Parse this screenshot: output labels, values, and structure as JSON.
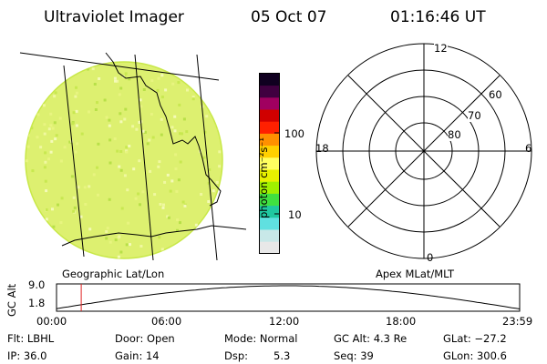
{
  "header": {
    "title": "Ultraviolet Imager",
    "date": "05 Oct 07",
    "time": "01:16:46 UT"
  },
  "colorbar": {
    "label": "photon cm⁻²s⁻¹",
    "ticks": [
      "100",
      "10"
    ],
    "scale": "log",
    "colors": [
      "#e8e8e8",
      "#c8e8e8",
      "#60e0e0",
      "#20c8a0",
      "#40e040",
      "#a0f000",
      "#e8f000",
      "#ffff60",
      "#ffd000",
      "#ff9000",
      "#ff2000",
      "#d00000",
      "#a00060",
      "#400040",
      "#100020"
    ]
  },
  "image_panel": {
    "label": "Geographic Lat/Lon",
    "fill_color": "#ddf070"
  },
  "polar_panel": {
    "label": "Apex MLat/MLT",
    "mlt_labels": {
      "top": "12",
      "bottom": "0",
      "left": "18",
      "right": "6"
    },
    "lat_labels": [
      "60",
      "70",
      "80"
    ]
  },
  "altitude_plot": {
    "ylabel": "GC Alt",
    "y_ticks": [
      "9.0",
      "1.8"
    ],
    "x_ticks": [
      "00:00",
      "06:00",
      "12:00",
      "18:00",
      "23:59"
    ],
    "marker_time_hours": 1.28
  },
  "info": {
    "filter": "Flt: LBHL",
    "door": "Door: Open",
    "mode": "Mode: Normal",
    "gc_alt": "GC Alt: 4.3 Re",
    "glat": "GLat: −27.2",
    "ip": "IP: 36.0",
    "gain": "Gain: 14",
    "dsp_label": "Dsp:",
    "dsp_value": "5.3",
    "seq": "Seq: 39",
    "glon": "GLon: 300.6"
  }
}
